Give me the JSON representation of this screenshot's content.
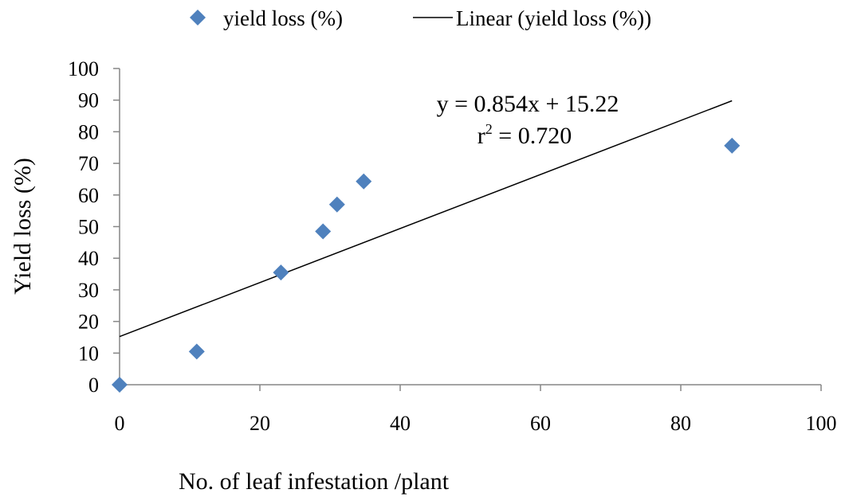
{
  "chart_data": {
    "type": "scatter",
    "xlabel": "No. of leaf infestation /plant",
    "ylabel": "Yield loss (%)",
    "xlim": [
      0,
      100
    ],
    "ylim": [
      0,
      100
    ],
    "xticks": [
      "0",
      "20",
      "40",
      "60",
      "80",
      "100"
    ],
    "yticks": [
      "0",
      "10",
      "20",
      "30",
      "40",
      "50",
      "60",
      "70",
      "80",
      "90",
      "100"
    ],
    "grid": false,
    "legend_position": "top",
    "series": [
      {
        "name": "yield loss (%)",
        "kind": "scatter",
        "marker": "diamond",
        "color": "#4F81BD",
        "x": [
          0,
          11,
          23,
          29,
          31,
          34.8,
          87.3
        ],
        "y": [
          0,
          10.5,
          35.5,
          48.5,
          57,
          64.3,
          75.6
        ]
      },
      {
        "name": "Linear (yield loss (%))",
        "kind": "line",
        "color": "#000000",
        "x": [
          0,
          87.3
        ],
        "y": [
          15.22,
          89.8
        ]
      }
    ],
    "annotations": {
      "equation": "y = 0.854x + 15.22",
      "r2_prefix": "r",
      "r2_sup": "2",
      "r2_value": " = 0.720"
    }
  }
}
